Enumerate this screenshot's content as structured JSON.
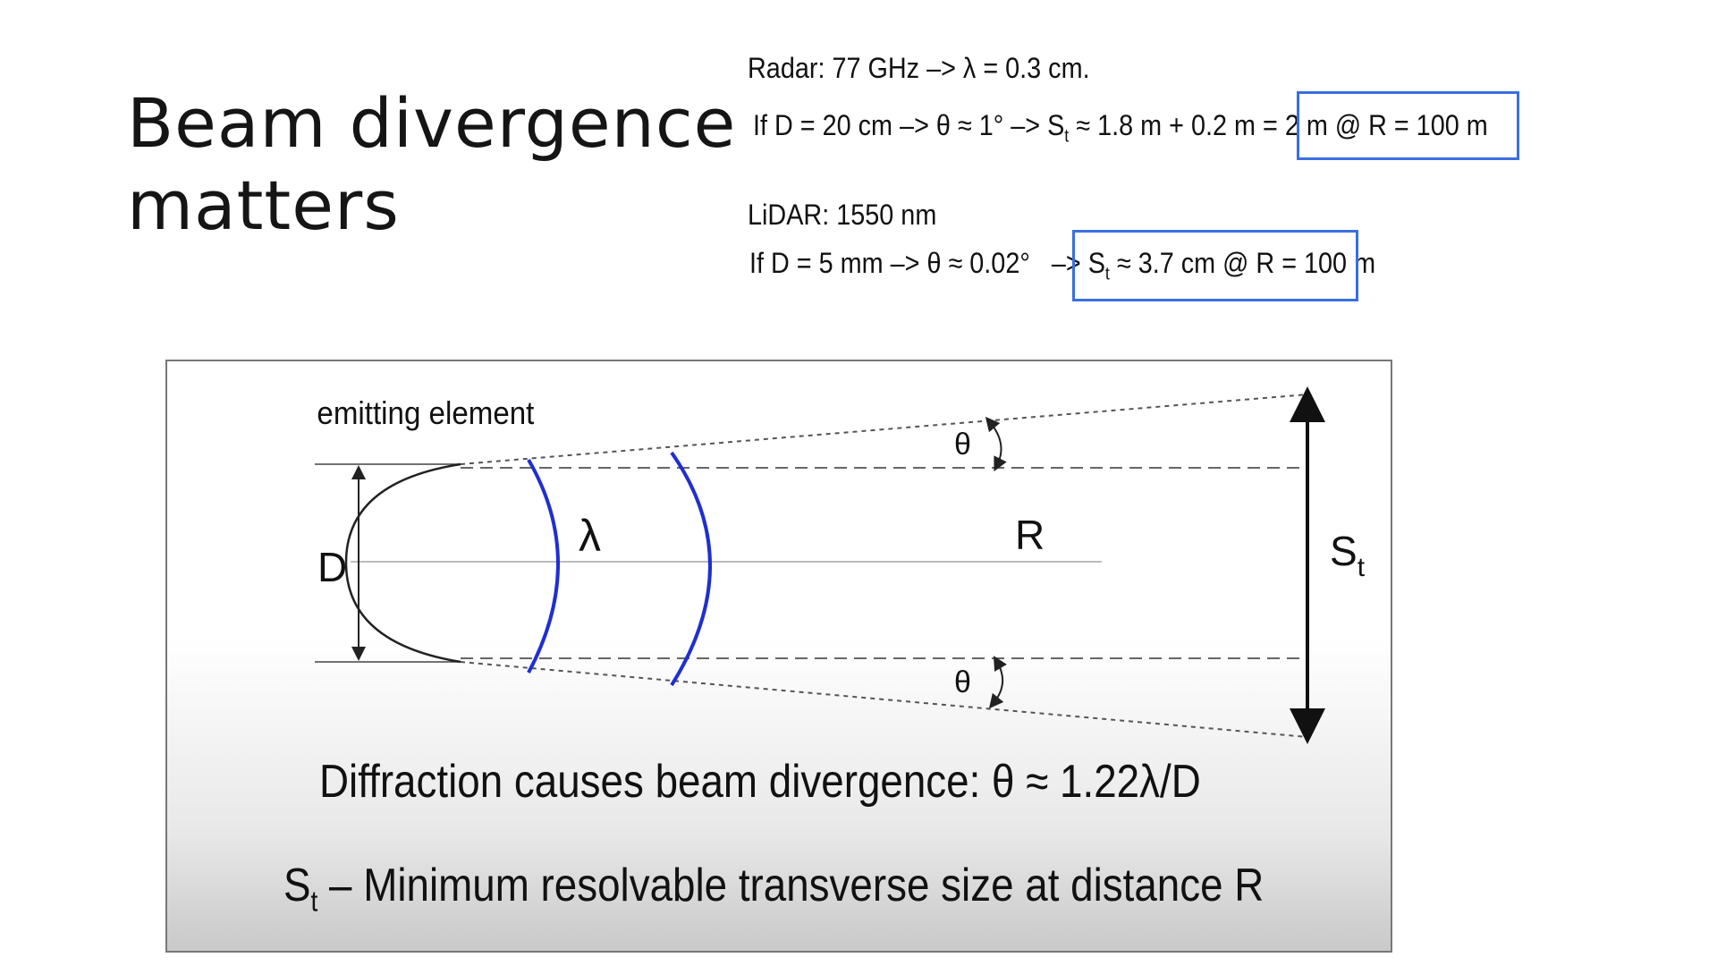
{
  "slide": {
    "title_line1": "Beam divergence",
    "title_line2": "matters"
  },
  "radar": {
    "label": "Radar: 77 GHz –> λ = 0.3 cm.",
    "calc_prefix": "If D = 20 cm –> θ ≈ 1° –> S",
    "calc_sub": "t",
    "calc_mid": " ≈ 1.8 m + 0.2 m = ",
    "calc_highlight": "2 m @ R = 100 m"
  },
  "lidar": {
    "label": "LiDAR: 1550 nm",
    "calc_prefix": "If D = 5 mm –> θ ≈ 0.02°   –> ",
    "calc_highlight_s": "S",
    "calc_highlight_sub": "t",
    "calc_highlight_rest": " ≈ 3.7 cm @ R = 100 m"
  },
  "diagram": {
    "emitting_label": "emitting element",
    "d_label": "D",
    "lambda_label": "λ",
    "r_label": "R",
    "theta_top": "θ",
    "theta_bottom": "θ",
    "st_label": "S",
    "st_sub": "t",
    "caption_formula": "Diffraction causes beam divergence: θ ≈ 1.22λ/D",
    "caption_def_s": "S",
    "caption_def_sub": "t",
    "caption_def_rest": " – Minimum resolvable transverse size at distance R",
    "colors": {
      "wavefront": "#1f2fd0",
      "highlight_border": "#3a6fe0"
    }
  }
}
